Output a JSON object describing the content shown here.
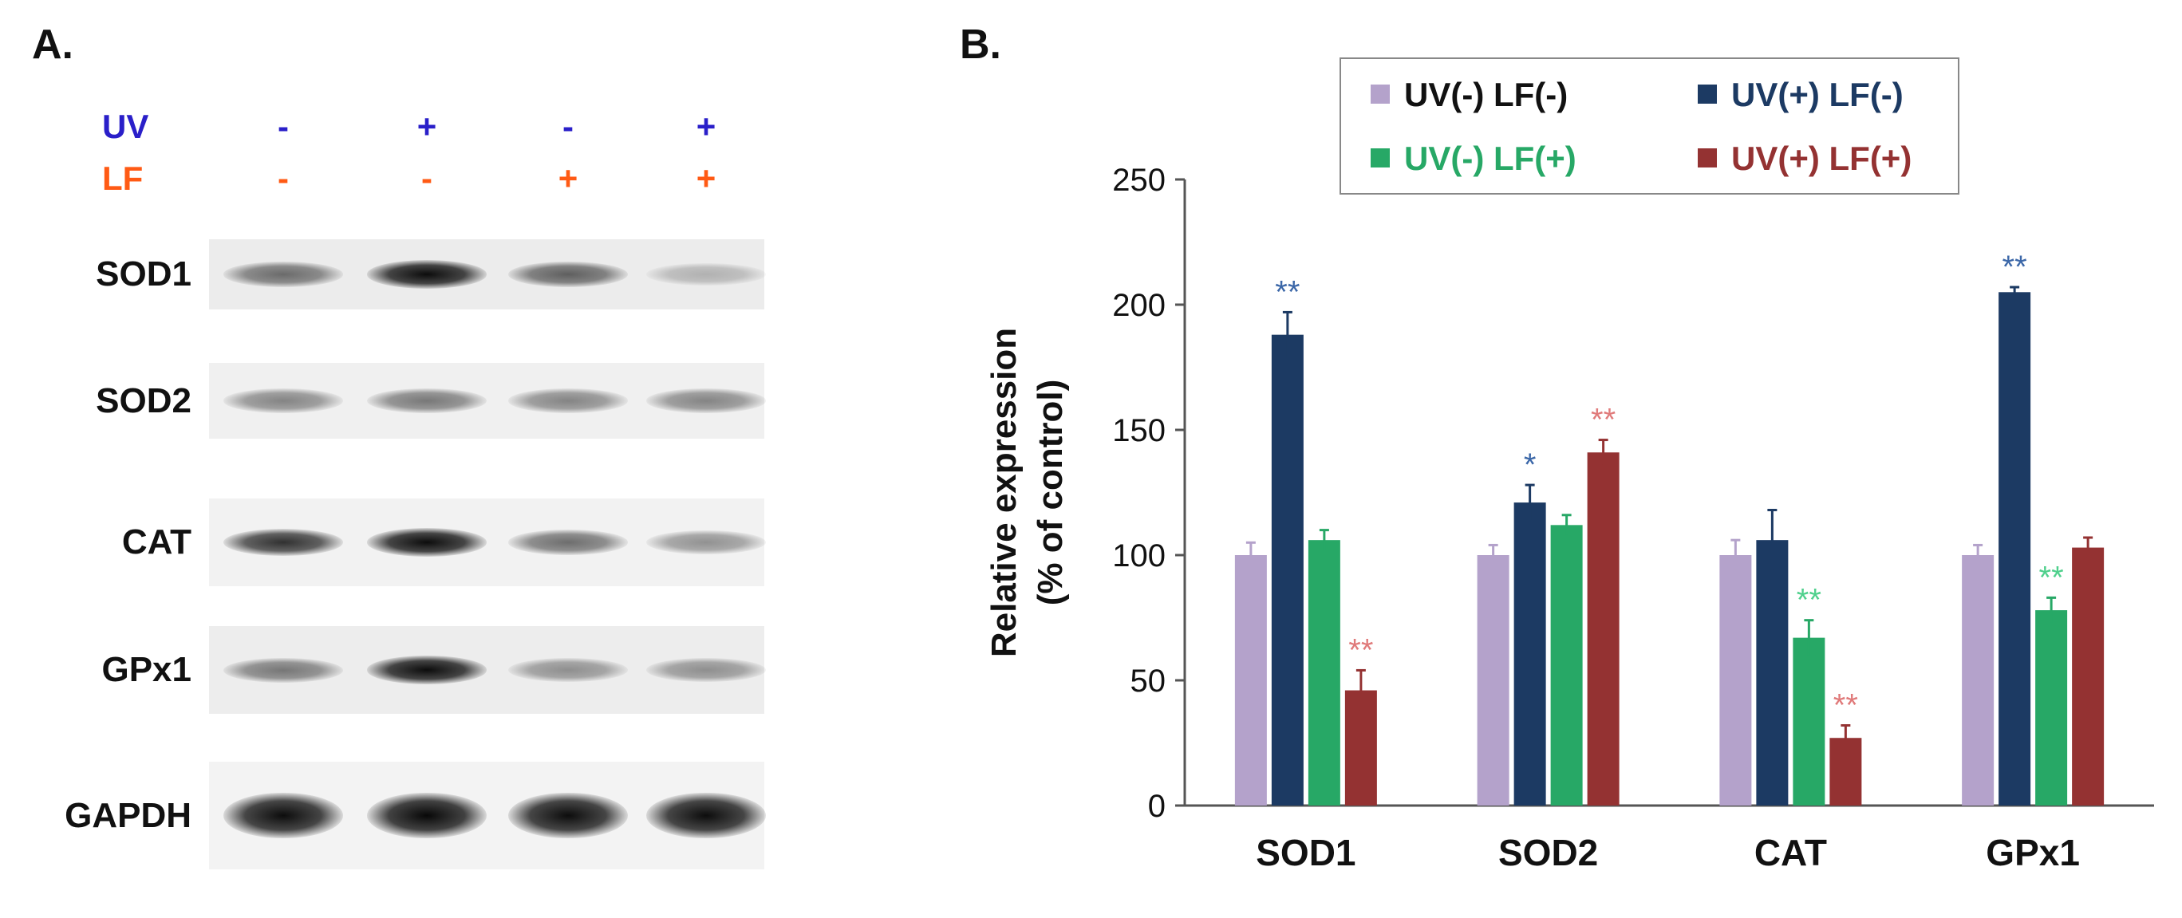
{
  "panelA": {
    "label": "A.",
    "conditions": [
      {
        "name": "UV",
        "color": "#2a1fc9",
        "symbols": [
          "-",
          "+",
          "-",
          "+"
        ]
      },
      {
        "name": "LF",
        "color": "#ff5a14",
        "symbols": [
          "-",
          "-",
          "+",
          "+"
        ]
      }
    ],
    "blots": [
      {
        "protein": "SOD1",
        "lane_intensity": [
          0.55,
          0.95,
          0.6,
          0.25
        ]
      },
      {
        "protein": "SOD2",
        "lane_intensity": [
          0.45,
          0.5,
          0.45,
          0.45
        ]
      },
      {
        "protein": "CAT",
        "lane_intensity": [
          0.8,
          0.95,
          0.55,
          0.4
        ]
      },
      {
        "protein": "GPx1",
        "lane_intensity": [
          0.5,
          0.95,
          0.4,
          0.4
        ]
      },
      {
        "protein": "GAPDH",
        "lane_intensity": [
          0.95,
          0.97,
          0.95,
          0.95
        ]
      }
    ]
  },
  "panelB": {
    "label": "B.",
    "chart_data": {
      "type": "bar",
      "title": "",
      "xlabel": "",
      "ylabel": "Relative expression (% of control)",
      "ylabel_lines": [
        "Relative expression",
        "(% of control)"
      ],
      "ylim": [
        0,
        250
      ],
      "yticks": [
        0,
        50,
        100,
        150,
        200,
        250
      ],
      "categories": [
        "SOD1",
        "SOD2",
        "CAT",
        "GPx1"
      ],
      "legend_position": "top",
      "series": [
        {
          "name": "UV(-) LF(-)",
          "color": "#b4a2cb",
          "values": [
            100,
            100,
            100,
            100
          ],
          "errors": [
            5,
            4,
            6,
            4
          ],
          "annotations": [
            "",
            "",
            "",
            ""
          ]
        },
        {
          "name": "UV(+) LF(-)",
          "color": "#1c3a63",
          "values": [
            188,
            121,
            106,
            205
          ],
          "errors": [
            9,
            7,
            12,
            2
          ],
          "annotations": [
            "**",
            "*",
            "",
            "**"
          ]
        },
        {
          "name": "UV(-) LF(+)",
          "color": "#27a866",
          "values": [
            106,
            112,
            67,
            78
          ],
          "errors": [
            4,
            4,
            7,
            5
          ],
          "annotations": [
            "",
            "",
            "**",
            "**"
          ]
        },
        {
          "name": "UV(+) LF(+)",
          "color": "#943232",
          "values": [
            46,
            141,
            27,
            103
          ],
          "errors": [
            8,
            5,
            5,
            4
          ],
          "annotations": [
            "**",
            "**",
            "**",
            ""
          ]
        }
      ],
      "annotation_colors": [
        "",
        "#3b67a8",
        "#4fd08c",
        "#e07a7a"
      ]
    }
  }
}
